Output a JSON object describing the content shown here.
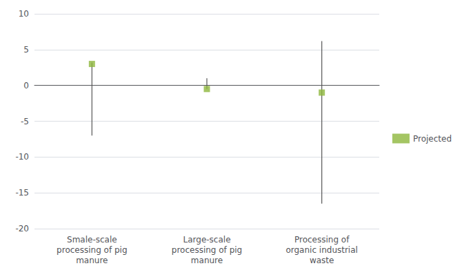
{
  "chart_data": {
    "type": "scatter",
    "categories": [
      "Smale-scale\nprocessing of pig\nmanure",
      "Large-scale\nprocessing of pig\nmanure",
      "Processing of\norganic industrial\nwaste"
    ],
    "series": [
      {
        "name": "Projected",
        "color": "#8db63c",
        "marker": "square",
        "values": [
          3.0,
          -0.5,
          -1.0
        ],
        "error_low": [
          -7.0,
          -0.5,
          -16.5
        ],
        "error_high": [
          3.2,
          1.0,
          6.2
        ]
      }
    ],
    "ylim": [
      -20,
      10
    ],
    "yticks": [
      -20,
      -15,
      -10,
      -5,
      0,
      5,
      10
    ],
    "grid": true,
    "legend": "right"
  }
}
